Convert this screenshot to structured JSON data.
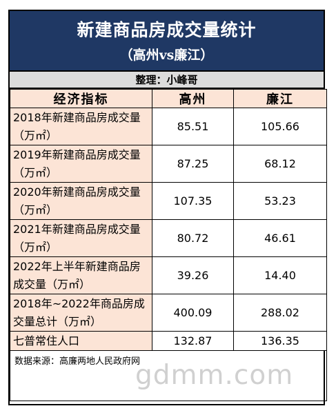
{
  "title": "新建商品房成交量统计",
  "subtitle": "（高州vs廉江）",
  "compiler": "整理：小峰哥",
  "table": {
    "headers": [
      "经济指标",
      "高州",
      "廉江"
    ],
    "rows": [
      {
        "label": "2018年新建商品房成交量（万㎡）",
        "gaozhou": "85.51",
        "lianjiang": "105.66"
      },
      {
        "label": "2019年新建商品房成交量（万㎡）",
        "gaozhou": "87.25",
        "lianjiang": "68.12"
      },
      {
        "label": "2020年新建商品房成交量（万㎡）",
        "gaozhou": "107.35",
        "lianjiang": "53.23"
      },
      {
        "label": "2021年新建商品房成交量（万㎡）",
        "gaozhou": "80.72",
        "lianjiang": "46.61"
      },
      {
        "label": "2022年上半年新建商品房成交量（万㎡）",
        "gaozhou": "39.26",
        "lianjiang": "14.40"
      },
      {
        "label": "2018年~2022年商品房成交量总计（万㎡）",
        "gaozhou": "400.09",
        "lianjiang": "288.02"
      },
      {
        "label": "七普常住人口",
        "gaozhou": "132.87",
        "lianjiang": "136.35"
      }
    ]
  },
  "source": "数据来源：高廉两地人民政府网",
  "watermark": "gdmm.com",
  "colors": {
    "title_bg": "#1f3864",
    "label_bg": "#fce4d6",
    "compiler_bg": "#dcdcdc"
  }
}
